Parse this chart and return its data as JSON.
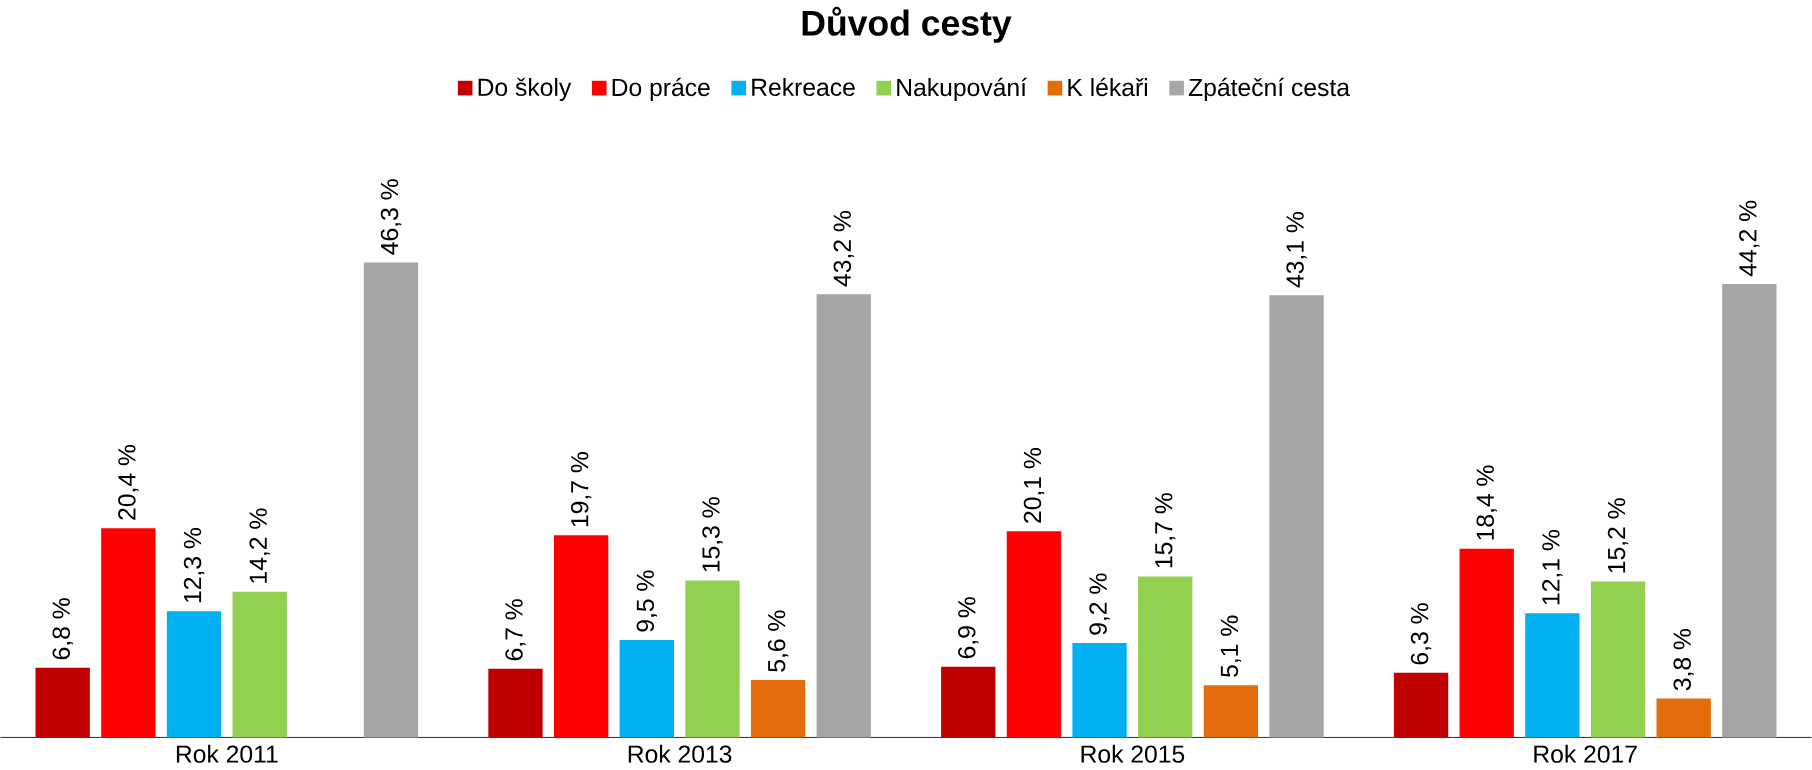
{
  "chart_data": {
    "type": "bar",
    "title": "**Důvod cesty**",
    "categories": [
      "Rok 2011",
      "Rok 2013",
      "Rok 2015",
      "Rok 2017"
    ],
    "series": [
      {
        "name": "Do školy",
        "color": "#c00000",
        "values": [
          6.8,
          6.7,
          6.9,
          6.3
        ],
        "value_labels": [
          "6,8 %",
          "6,7 %",
          "6,9 %",
          "6,3 %"
        ]
      },
      {
        "name": "Do práce",
        "color": "#ff0000",
        "values": [
          20.4,
          19.7,
          20.1,
          18.4
        ],
        "value_labels": [
          "20,4 %",
          "19,7 %",
          "20,1 %",
          "18,4 %"
        ]
      },
      {
        "name": "Rekreace",
        "color": "#00b0f0",
        "values": [
          12.3,
          9.5,
          9.2,
          12.1
        ],
        "value_labels": [
          "12,3 %",
          "9,5 %",
          "9,2 %",
          "12,1 %"
        ]
      },
      {
        "name": "Nakupování",
        "color": "#92d050",
        "values": [
          14.2,
          15.3,
          15.7,
          15.2
        ],
        "value_labels": [
          "14,2 %",
          "15,3 %",
          "15,7 %",
          "15,2 %"
        ]
      },
      {
        "name": "K lékaři",
        "color": "#e46c0a",
        "values": [
          null,
          5.6,
          5.1,
          3.8
        ],
        "value_labels": [
          null,
          "5,6 %",
          "5,1 %",
          "3,8 %"
        ]
      },
      {
        "name": "Zpáteční cesta",
        "color": "#a6a6a6",
        "values": [
          46.3,
          43.2,
          43.1,
          44.2
        ],
        "value_labels": [
          "46,3 %",
          "43,2 %",
          "43,1 %",
          "44,2 %"
        ]
      }
    ],
    "legend": "top"
  }
}
